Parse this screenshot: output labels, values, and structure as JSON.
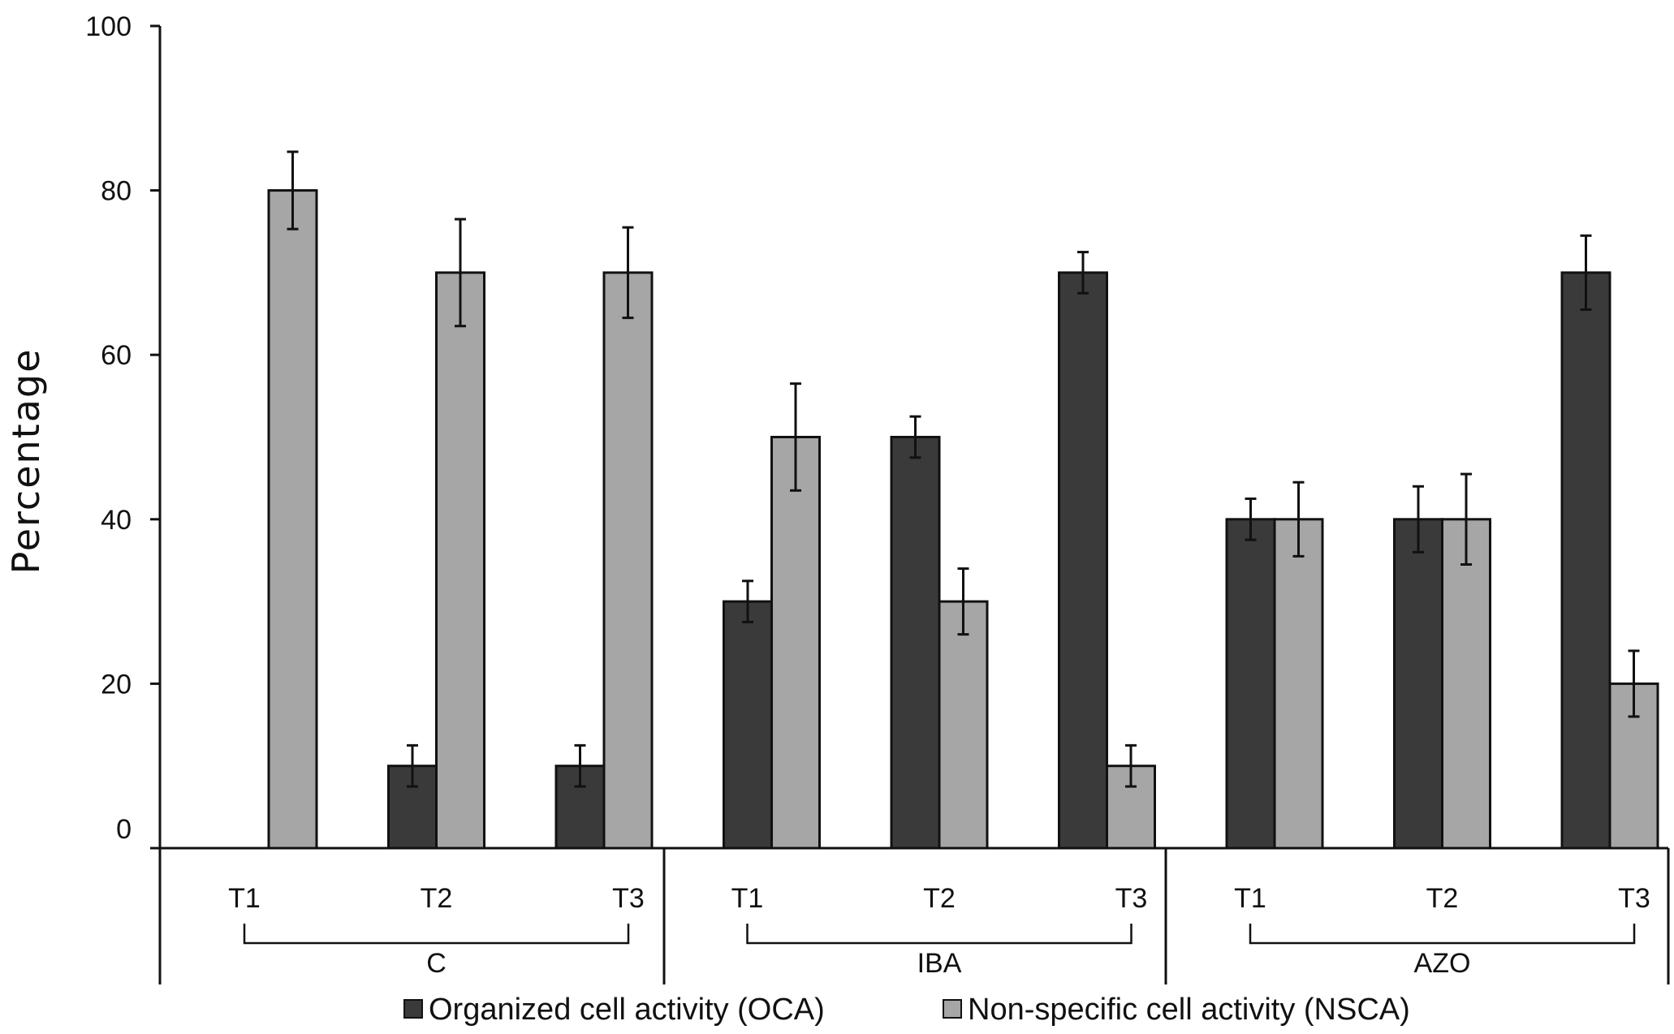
{
  "chart_data": {
    "type": "bar",
    "title": "",
    "xlabel": "",
    "ylabel": "Percentage",
    "ylim": [
      0,
      100
    ],
    "yticks": [
      0,
      20,
      40,
      60,
      80,
      100
    ],
    "groups": [
      {
        "name": "C",
        "categories": [
          "T1",
          "T2",
          "T3"
        ]
      },
      {
        "name": "IBA",
        "categories": [
          "T1",
          "T2",
          "T3"
        ]
      },
      {
        "name": "AZO",
        "categories": [
          "T1",
          "T2",
          "T3"
        ]
      }
    ],
    "series": [
      {
        "name": "Organized cell activity (OCA)",
        "color": "#3a3a3a",
        "values": [
          0,
          10,
          10,
          30,
          50,
          70,
          40,
          40,
          70
        ],
        "errors": [
          0,
          2.5,
          2.5,
          2.5,
          2.5,
          2.5,
          2.5,
          4,
          4.5
        ]
      },
      {
        "name": "Non-specific cell activity (NSCA)",
        "color": "#a6a6a6",
        "values": [
          80,
          70,
          70,
          50,
          30,
          10,
          40,
          40,
          20
        ],
        "errors": [
          4.7,
          6.5,
          5.5,
          6.5,
          4,
          2.5,
          4.5,
          5.5,
          4
        ]
      }
    ],
    "legend": "bottom"
  }
}
